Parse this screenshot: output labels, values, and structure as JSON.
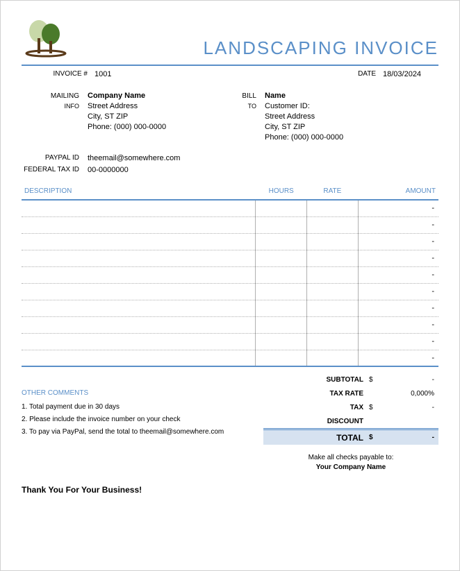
{
  "colors": {
    "accent": "#5a8fc8",
    "text": "#000000",
    "dot": "#b0b0b0",
    "total_bg": "#d6e2f0"
  },
  "header": {
    "title": "LANDSCAPING INVOICE"
  },
  "meta": {
    "invoice_label": "INVOICE #",
    "invoice_no": "1001",
    "date_label": "DATE",
    "date": "18/03/2024"
  },
  "mailing": {
    "label": "MAILING",
    "sublabel": "INFO",
    "company": "Company Name",
    "street": "Street Address",
    "city": "City, ST  ZIP",
    "phone": "Phone: (000) 000-0000"
  },
  "bill": {
    "label": "BILL",
    "sublabel": "TO",
    "name": "Name",
    "customer_id": "Customer ID:",
    "street": "Street Address",
    "city": "City, ST  ZIP",
    "phone": "Phone: (000) 000-0000"
  },
  "ids": {
    "paypal_label": "PAYPAL ID",
    "paypal": "theemail@somewhere.com",
    "fedtax_label": "FEDERAL TAX ID",
    "fedtax": "00-0000000"
  },
  "table": {
    "headers": {
      "desc": "DESCRIPTION",
      "hours": "HOURS",
      "rate": "RATE",
      "amount": "AMOUNT"
    },
    "rows": [
      {
        "desc": "",
        "hours": "",
        "rate": "",
        "amount": "-"
      },
      {
        "desc": "",
        "hours": "",
        "rate": "",
        "amount": "-"
      },
      {
        "desc": "",
        "hours": "",
        "rate": "",
        "amount": "-"
      },
      {
        "desc": "",
        "hours": "",
        "rate": "",
        "amount": "-"
      },
      {
        "desc": "",
        "hours": "",
        "rate": "",
        "amount": "-"
      },
      {
        "desc": "",
        "hours": "",
        "rate": "",
        "amount": "-"
      },
      {
        "desc": "",
        "hours": "",
        "rate": "",
        "amount": "-"
      },
      {
        "desc": "",
        "hours": "",
        "rate": "",
        "amount": "-"
      },
      {
        "desc": "",
        "hours": "",
        "rate": "",
        "amount": "-"
      },
      {
        "desc": "",
        "hours": "",
        "rate": "",
        "amount": "-"
      }
    ]
  },
  "comments": {
    "title": "OTHER COMMENTS",
    "line1": "1. Total payment due in 30 days",
    "line2": "2. Please include the invoice number on your check",
    "line3": "3. To pay via PayPal, send the total to theemail@somewhere.com"
  },
  "totals": {
    "subtotal_label": "SUBTOTAL",
    "subtotal_cur": "$",
    "subtotal_val": "-",
    "taxrate_label": "TAX RATE",
    "taxrate_val": "0,000%",
    "tax_label": "TAX",
    "tax_cur": "$",
    "tax_val": "-",
    "discount_label": "DISCOUNT",
    "discount_val": "",
    "total_label": "TOTAL",
    "total_cur": "$",
    "total_val": "-"
  },
  "payable": {
    "line1": "Make all checks payable to:",
    "line2": "Your Company Name"
  },
  "thanks": "Thank You For Your Business!"
}
